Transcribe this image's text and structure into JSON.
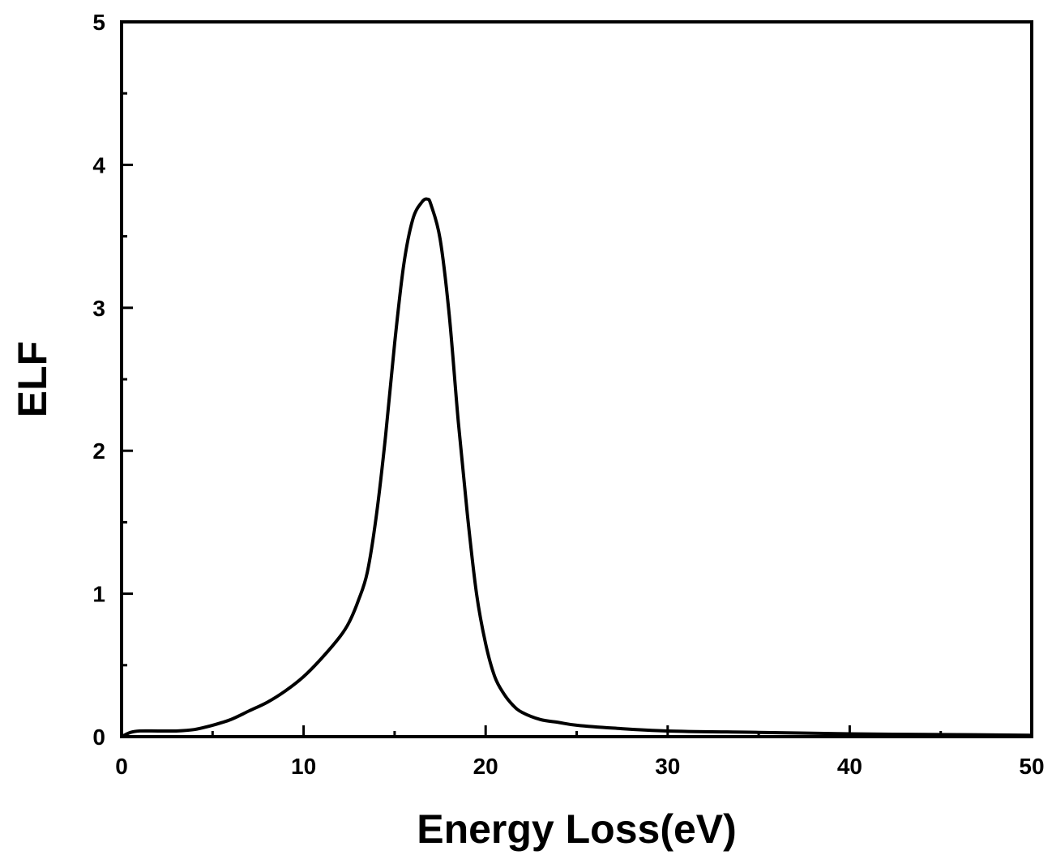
{
  "chart_data": {
    "type": "line",
    "title": "",
    "xlabel": "Energy Loss(eV)",
    "ylabel": "ELF",
    "xlim": [
      0,
      50
    ],
    "ylim": [
      0,
      5
    ],
    "x_ticks": [
      "0",
      "10",
      "20",
      "30",
      "40",
      "50"
    ],
    "y_ticks": [
      "0",
      "1",
      "2",
      "3",
      "4",
      "5"
    ],
    "grid": false,
    "legend": "none",
    "line_color": "#000000",
    "series": [
      {
        "x": [
          0,
          0.5,
          1,
          2,
          3,
          4,
          5,
          6,
          7,
          8,
          9,
          10,
          11,
          12,
          12.5,
          13,
          13.5,
          14,
          14.5,
          15,
          15.5,
          16,
          16.5,
          16.8,
          17,
          17.5,
          18,
          18.5,
          19,
          19.5,
          20,
          20.5,
          21,
          21.5,
          22,
          23,
          24,
          25,
          27,
          30,
          35,
          40,
          45,
          50
        ],
        "y": [
          0.0,
          0.03,
          0.04,
          0.04,
          0.04,
          0.05,
          0.08,
          0.12,
          0.18,
          0.24,
          0.32,
          0.42,
          0.55,
          0.7,
          0.8,
          0.95,
          1.15,
          1.55,
          2.1,
          2.75,
          3.3,
          3.62,
          3.74,
          3.76,
          3.72,
          3.48,
          2.95,
          2.2,
          1.55,
          1.0,
          0.65,
          0.42,
          0.3,
          0.22,
          0.17,
          0.12,
          0.1,
          0.08,
          0.06,
          0.04,
          0.03,
          0.02,
          0.015,
          0.01
        ]
      }
    ]
  }
}
